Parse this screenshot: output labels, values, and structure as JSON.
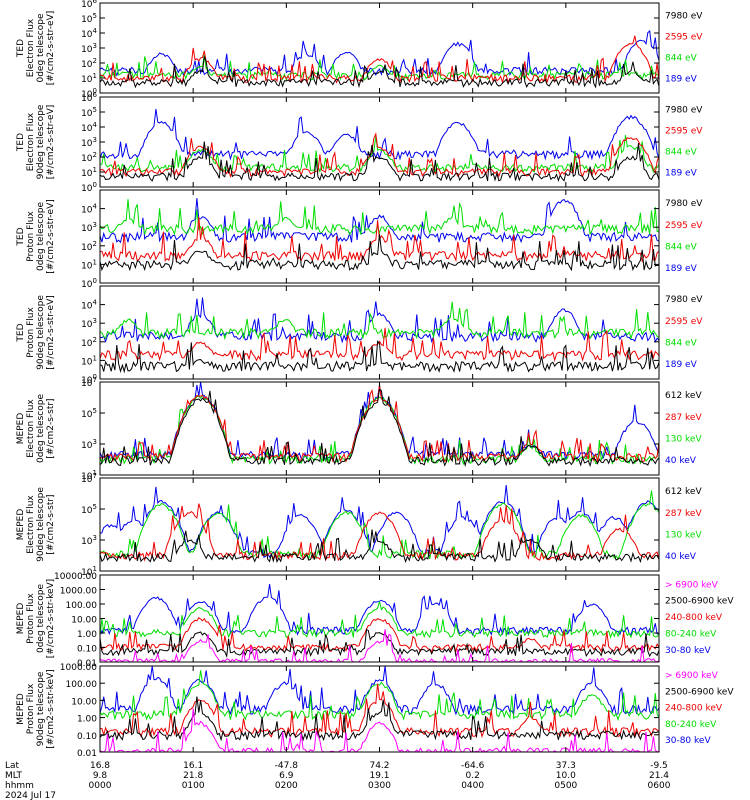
{
  "colors": {
    "black": "#000000",
    "red": "#ee0000",
    "green": "#00dd00",
    "blue": "#0000ee",
    "magenta": "#ff00ff"
  },
  "chart_data": [
    {
      "type": "line",
      "scale": "log",
      "ylim": [
        1,
        1000000
      ],
      "ytick_values": [
        1,
        10,
        100,
        1000,
        10000,
        100000,
        1000000
      ],
      "ytick_labels": [
        "10^0",
        "10^1",
        "10^2",
        "10^3",
        "10^4",
        "10^5",
        "10^6"
      ],
      "ylabel": [
        "TED",
        "Electron Flux",
        "0deg telescope",
        "[#/cm2-s-str-eV]"
      ],
      "legend": [
        {
          "label": "7980 eV",
          "color": "#000000"
        },
        {
          "label": "2595 eV",
          "color": "#ee0000"
        },
        {
          "label": "844 eV",
          "color": "#00dd00"
        },
        {
          "label": "189 eV",
          "color": "#0000ee"
        }
      ],
      "series": [
        {
          "color": "#0000ee",
          "base": 30,
          "peaks": [
            [
              0.11,
              400
            ],
            [
              0.37,
              400
            ],
            [
              0.44,
              500
            ],
            [
              0.64,
              2000
            ],
            [
              0.97,
              3000
            ]
          ]
        },
        {
          "color": "#00dd00",
          "base": 15,
          "peaks": [
            [
              0.18,
              50
            ],
            [
              0.5,
              60
            ],
            [
              0.95,
              20
            ]
          ]
        },
        {
          "color": "#ee0000",
          "base": 10,
          "peaks": [
            [
              0.18,
              200
            ],
            [
              0.5,
              180
            ],
            [
              0.95,
              2000
            ]
          ]
        },
        {
          "color": "#000000",
          "base": 5,
          "peaks": [
            [
              0.18,
              30
            ],
            [
              0.5,
              25
            ],
            [
              0.95,
              30
            ]
          ]
        }
      ]
    },
    {
      "type": "line",
      "scale": "log",
      "ylim": [
        1,
        1000000
      ],
      "ytick_values": [
        1,
        10,
        100,
        1000,
        10000,
        100000,
        1000000
      ],
      "ytick_labels": [
        "10^0",
        "10^1",
        "10^2",
        "10^3",
        "10^4",
        "10^5",
        "10^6"
      ],
      "ylabel": [
        "TED",
        "Electron Flux",
        "90deg telescope",
        "[#/cm2-s-str-eV]"
      ],
      "legend": [
        {
          "label": "7980 eV",
          "color": "#000000"
        },
        {
          "label": "2595 eV",
          "color": "#ee0000"
        },
        {
          "label": "844 eV",
          "color": "#00dd00"
        },
        {
          "label": "189 eV",
          "color": "#0000ee"
        }
      ],
      "series": [
        {
          "color": "#0000ee",
          "base": 150,
          "peaks": [
            [
              0.11,
              20000
            ],
            [
              0.37,
              5000
            ],
            [
              0.44,
              3000
            ],
            [
              0.64,
              20000
            ],
            [
              0.95,
              50000
            ]
          ]
        },
        {
          "color": "#00dd00",
          "base": 20,
          "peaks": [
            [
              0.18,
              300
            ],
            [
              0.5,
              300
            ],
            [
              0.95,
              500
            ]
          ]
        },
        {
          "color": "#ee0000",
          "base": 10,
          "peaks": [
            [
              0.18,
              500
            ],
            [
              0.5,
              400
            ],
            [
              0.95,
              2000
            ]
          ]
        },
        {
          "color": "#000000",
          "base": 5,
          "peaks": [
            [
              0.18,
              100
            ],
            [
              0.5,
              100
            ],
            [
              0.95,
              100
            ]
          ]
        }
      ]
    },
    {
      "type": "line",
      "scale": "log",
      "ylim": [
        1,
        100000
      ],
      "ytick_values": [
        1,
        10,
        100,
        1000,
        10000
      ],
      "ytick_labels": [
        "10^0",
        "10^1",
        "10^2",
        "10^3",
        "10^4"
      ],
      "ylabel": [
        "TED",
        "Proton Flux",
        "0deg telescope",
        "[#/cm2-s-str-eV]"
      ],
      "legend": [
        {
          "label": "7980 eV",
          "color": "#000000"
        },
        {
          "label": "2595 eV",
          "color": "#ee0000"
        },
        {
          "label": "844 eV",
          "color": "#00dd00"
        },
        {
          "label": "189 eV",
          "color": "#0000ee"
        }
      ],
      "series": [
        {
          "color": "#0000ee",
          "base": 300,
          "peaks": [
            [
              0.18,
              4000
            ],
            [
              0.5,
              4000
            ],
            [
              0.83,
              30000
            ]
          ]
        },
        {
          "color": "#00dd00",
          "base": 800,
          "peaks": [
            [
              0.05,
              3000
            ],
            [
              0.33,
              3000
            ],
            [
              0.63,
              3000
            ]
          ]
        },
        {
          "color": "#ee0000",
          "base": 30,
          "peaks": [
            [
              0.18,
              300
            ],
            [
              0.5,
              300
            ]
          ]
        },
        {
          "color": "#000000",
          "base": 10,
          "peaks": [
            [
              0.18,
              60
            ],
            [
              0.5,
              50
            ]
          ]
        }
      ]
    },
    {
      "type": "line",
      "scale": "log",
      "ylim": [
        1,
        100000
      ],
      "ytick_values": [
        1,
        10,
        100,
        1000,
        10000
      ],
      "ytick_labels": [
        "10^0",
        "10^1",
        "10^2",
        "10^3",
        "10^4"
      ],
      "ylabel": [
        "TED",
        "Proton Flux",
        "90deg telescope",
        "[#/cm2-s-str-eV]"
      ],
      "legend": [
        {
          "label": "7980 eV",
          "color": "#000000"
        },
        {
          "label": "2595 eV",
          "color": "#ee0000"
        },
        {
          "label": "844 eV",
          "color": "#00dd00"
        },
        {
          "label": "189 eV",
          "color": "#0000ee"
        }
      ],
      "series": [
        {
          "color": "#0000ee",
          "base": 200,
          "peaks": [
            [
              0.18,
              3000
            ],
            [
              0.5,
              3000
            ],
            [
              0.83,
              5000
            ]
          ]
        },
        {
          "color": "#00dd00",
          "base": 300,
          "peaks": [
            [
              0.05,
              1500
            ],
            [
              0.33,
              1500
            ],
            [
              0.63,
              2000
            ]
          ]
        },
        {
          "color": "#ee0000",
          "base": 20,
          "peaks": [
            [
              0.18,
              100
            ],
            [
              0.5,
              100
            ]
          ]
        },
        {
          "color": "#000000",
          "base": 5,
          "peaks": [
            [
              0.18,
              10
            ],
            [
              0.5,
              10
            ]
          ]
        }
      ]
    },
    {
      "type": "line",
      "scale": "log",
      "ylim": [
        10,
        10000000
      ],
      "ytick_values": [
        10,
        1000,
        100000,
        10000000
      ],
      "ytick_labels": [
        "10^1",
        "10^3",
        "10^5",
        "10^7"
      ],
      "ylabel": [
        "MEPED",
        "Electron Flux",
        "0deg telescope",
        "[#/cm2-s-str]"
      ],
      "legend": [
        {
          "label": "612 keV",
          "color": "#000000"
        },
        {
          "label": "287 keV",
          "color": "#ee0000"
        },
        {
          "label": "130 keV",
          "color": "#00dd00"
        },
        {
          "label": "40 keV",
          "color": "#0000ee"
        }
      ],
      "series": [
        {
          "color": "#0000ee",
          "base": 200,
          "peaks": [
            [
              0.18,
              1500000
            ],
            [
              0.5,
              1000000
            ],
            [
              0.77,
              800
            ],
            [
              0.96,
              30000
            ]
          ]
        },
        {
          "color": "#00dd00",
          "base": 100,
          "peaks": [
            [
              0.18,
              1200000
            ],
            [
              0.5,
              900000
            ],
            [
              0.77,
              600
            ]
          ]
        },
        {
          "color": "#ee0000",
          "base": 150,
          "peaks": [
            [
              0.18,
              1300000
            ],
            [
              0.5,
              800000
            ],
            [
              0.77,
              1000
            ]
          ]
        },
        {
          "color": "#000000",
          "base": 80,
          "peaks": [
            [
              0.18,
              800000
            ],
            [
              0.5,
              500000
            ],
            [
              0.77,
              800
            ]
          ]
        }
      ]
    },
    {
      "type": "line",
      "scale": "log",
      "ylim": [
        10,
        10000000
      ],
      "ytick_values": [
        10,
        1000,
        100000,
        10000000
      ],
      "ytick_labels": [
        "10^1",
        "10^3",
        "10^5",
        "10^7"
      ],
      "ylabel": [
        "MEPED",
        "Electron Flux",
        "90deg telescope",
        "[#/cm2-s-str]"
      ],
      "legend": [
        {
          "label": "612 keV",
          "color": "#000000"
        },
        {
          "label": "287 keV",
          "color": "#ee0000"
        },
        {
          "label": "130 keV",
          "color": "#00dd00"
        },
        {
          "label": "40 keV",
          "color": "#0000ee"
        }
      ],
      "series": [
        {
          "color": "#0000ee",
          "base": 150,
          "peaks": [
            [
              0.02,
              10000
            ],
            [
              0.06,
              20000
            ],
            [
              0.11,
              300000
            ],
            [
              0.21,
              60000
            ],
            [
              0.36,
              40000
            ],
            [
              0.44,
              80000
            ],
            [
              0.53,
              60000
            ],
            [
              0.65,
              30000
            ],
            [
              0.72,
              300000
            ],
            [
              0.82,
              30000
            ],
            [
              0.86,
              60000
            ],
            [
              0.92,
              30000
            ],
            [
              0.98,
              300000
            ]
          ]
        },
        {
          "color": "#00dd00",
          "base": 120,
          "peaks": [
            [
              0.11,
              200000
            ],
            [
              0.21,
              50000
            ],
            [
              0.44,
              60000
            ],
            [
              0.72,
              200000
            ],
            [
              0.86,
              40000
            ],
            [
              0.98,
              200000
            ]
          ]
        },
        {
          "color": "#ee0000",
          "base": 100,
          "peaks": [
            [
              0.16,
              60000
            ],
            [
              0.5,
              60000
            ],
            [
              0.72,
              20000
            ],
            [
              0.93,
              5000
            ]
          ]
        },
        {
          "color": "#000000",
          "base": 80,
          "peaks": [
            [
              0.16,
              1000
            ],
            [
              0.5,
              800
            ],
            [
              0.77,
              1000
            ]
          ]
        }
      ]
    },
    {
      "type": "line",
      "scale": "log",
      "ylim": [
        0.01,
        10000
      ],
      "ytick_values": [
        0.01,
        0.1,
        1,
        10,
        100,
        1000,
        10000
      ],
      "ytick_labels": [
        "0.01",
        "0.10",
        "1.00",
        "10.00",
        "100.00",
        "1000.00",
        "10000.00"
      ],
      "ylabel": [
        "MEPED",
        "Proton Flux",
        "0deg telescope",
        "[#/cm2-s-str-keV]"
      ],
      "legend": [
        {
          "label": "> 6900 keV",
          "color": "#ff00ff"
        },
        {
          "label": "2500-6900 keV",
          "color": "#000000"
        },
        {
          "label": "240-800 keV",
          "color": "#ee0000"
        },
        {
          "label": "80-240 keV",
          "color": "#00dd00"
        },
        {
          "label": "30-80 keV",
          "color": "#0000ee"
        }
      ],
      "series": [
        {
          "color": "#0000ee",
          "base": 1.5,
          "peaks": [
            [
              0.1,
              300
            ],
            [
              0.18,
              150
            ],
            [
              0.3,
              300
            ],
            [
              0.5,
              200
            ],
            [
              0.6,
              100
            ],
            [
              0.88,
              100
            ]
          ]
        },
        {
          "color": "#00dd00",
          "base": 1.0,
          "peaks": [
            [
              0.18,
              50
            ],
            [
              0.5,
              60
            ],
            [
              0.77,
              1
            ]
          ]
        },
        {
          "color": "#ee0000",
          "base": 0.1,
          "peaks": [
            [
              0.18,
              10
            ],
            [
              0.5,
              10
            ],
            [
              0.77,
              0.4
            ]
          ]
        },
        {
          "color": "#000000",
          "base": 0.05,
          "peaks": [
            [
              0.18,
              1
            ],
            [
              0.5,
              1
            ],
            [
              0.77,
              0.05
            ]
          ]
        },
        {
          "color": "#ff00ff",
          "base": 0.01,
          "peaks": [
            [
              0.18,
              0.3
            ],
            [
              0.5,
              0.25
            ]
          ]
        }
      ]
    },
    {
      "type": "line",
      "scale": "log",
      "ylim": [
        0.01,
        1000
      ],
      "ytick_values": [
        0.01,
        0.1,
        1,
        10,
        100,
        1000
      ],
      "ytick_labels": [
        "0.01",
        "0.10",
        "1.00",
        "10.00",
        "100.00",
        "1000.00"
      ],
      "ylabel": [
        "MEPED",
        "Proton Flux",
        "90deg telescope",
        "[#/cm2-s-str-keV]"
      ],
      "legend": [
        {
          "label": "> 6900 keV",
          "color": "#ff00ff"
        },
        {
          "label": "2500-6900 keV",
          "color": "#000000"
        },
        {
          "label": "240-800 keV",
          "color": "#ee0000"
        },
        {
          "label": "80-240 keV",
          "color": "#00dd00"
        },
        {
          "label": "30-80 keV",
          "color": "#0000ee"
        }
      ],
      "series": [
        {
          "color": "#0000ee",
          "base": 3,
          "peaks": [
            [
              0.1,
              200
            ],
            [
              0.18,
              150
            ],
            [
              0.33,
              100
            ],
            [
              0.5,
              150
            ],
            [
              0.6,
              100
            ],
            [
              0.88,
              100
            ]
          ]
        },
        {
          "color": "#00dd00",
          "base": 1.5,
          "peaks": [
            [
              0.18,
              100
            ],
            [
              0.5,
              100
            ],
            [
              0.88,
              20
            ]
          ]
        },
        {
          "color": "#ee0000",
          "base": 0.15,
          "peaks": [
            [
              0.18,
              10
            ],
            [
              0.5,
              10
            ],
            [
              0.77,
              1
            ]
          ]
        },
        {
          "color": "#000000",
          "base": 0.1,
          "peaks": [
            [
              0.18,
              2
            ],
            [
              0.5,
              2
            ],
            [
              0.77,
              0.1
            ]
          ]
        },
        {
          "color": "#ff00ff",
          "base": 0.01,
          "peaks": [
            [
              0.18,
              0.5
            ],
            [
              0.5,
              0.5
            ]
          ]
        }
      ]
    }
  ],
  "xaxis": {
    "row_labels": [
      "Lat",
      "MLT",
      "hhmm"
    ],
    "date": "2024 Jul 17",
    "ticks": [
      {
        "lat": "16.8",
        "mlt": "9.8",
        "hhmm": "0000"
      },
      {
        "lat": "16.1",
        "mlt": "21.8",
        "hhmm": "0100"
      },
      {
        "lat": "-47.8",
        "mlt": "6.9",
        "hhmm": "0200"
      },
      {
        "lat": "74.2",
        "mlt": "19.1",
        "hhmm": "0300"
      },
      {
        "lat": "-64.6",
        "mlt": "0.2",
        "hhmm": "0400"
      },
      {
        "lat": "37.3",
        "mlt": "10.0",
        "hhmm": "0500"
      },
      {
        "lat": "-9.5",
        "mlt": "21.4",
        "hhmm": "0600"
      }
    ]
  }
}
